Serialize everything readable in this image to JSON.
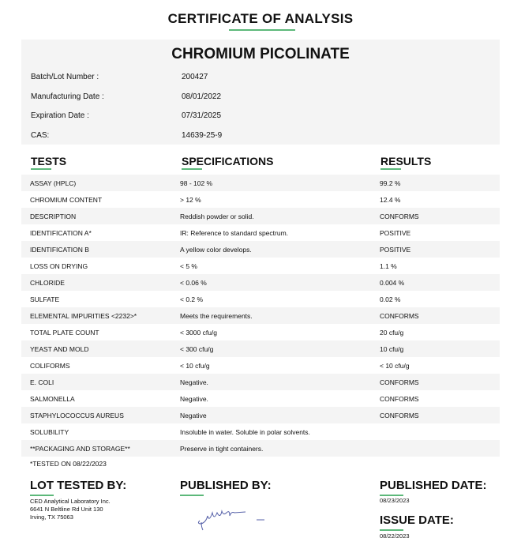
{
  "title": "CERTIFICATE OF ANALYSIS",
  "product": "CHROMIUM PICOLINATE",
  "info": [
    {
      "label": "Batch/Lot Number :",
      "value": "200427"
    },
    {
      "label": "Manufacturing Date :",
      "value": "08/01/2022"
    },
    {
      "label": "Expiration Date :",
      "value": "07/31/2025"
    },
    {
      "label": "CAS:",
      "value": "14639-25-9"
    }
  ],
  "headers": {
    "tests": "TESTS",
    "specifications": "SPECIFICATIONS",
    "results": "RESULTS"
  },
  "rows": [
    {
      "test": "ASSAY (HPLC)",
      "spec": "98 - 102 %",
      "result": "99.2 %"
    },
    {
      "test": "CHROMIUM CONTENT",
      "spec": "> 12 %",
      "result": "12.4 %"
    },
    {
      "test": "DESCRIPTION",
      "spec": "Reddish powder or solid.",
      "result": "CONFORMS"
    },
    {
      "test": "IDENTIFICATION A*",
      "spec": "IR: Reference to standard spectrum.",
      "result": "POSITIVE"
    },
    {
      "test": "IDENTIFICATION B",
      "spec": "A yellow color develops.",
      "result": "POSITIVE"
    },
    {
      "test": "LOSS ON DRYING",
      "spec": "< 5 %",
      "result": "1.1 %"
    },
    {
      "test": "CHLORIDE",
      "spec": "< 0.06 %",
      "result": "0.004 %"
    },
    {
      "test": "SULFATE",
      "spec": "< 0.2 %",
      "result": "0.02 %"
    },
    {
      "test": "ELEMENTAL IMPURITIES <2232>*",
      "spec": "Meets the requirements.",
      "result": "CONFORMS"
    },
    {
      "test": "TOTAL PLATE COUNT",
      "spec": "< 3000 cfu/g",
      "result": "20 cfu/g"
    },
    {
      "test": "YEAST AND MOLD",
      "spec": "< 300 cfu/g",
      "result": "10 cfu/g"
    },
    {
      "test": "COLIFORMS",
      "spec": "< 10 cfu/g",
      "result": "< 10 cfu/g"
    },
    {
      "test": "E. COLI",
      "spec": "Negative.",
      "result": "CONFORMS"
    },
    {
      "test": "SALMONELLA",
      "spec": "Negative.",
      "result": "CONFORMS"
    },
    {
      "test": "STAPHYLOCOCCUS AUREUS",
      "spec": "Negative",
      "result": "CONFORMS"
    },
    {
      "test": "SOLUBILITY",
      "spec": "Insoluble in water. Soluble in polar solvents.",
      "result": ""
    },
    {
      "test": "**PACKAGING AND STORAGE**",
      "spec": "Preserve in tight containers.",
      "result": ""
    }
  ],
  "note": "*TESTED ON 08/22/2023",
  "footer": {
    "lot_tested_by": "LOT TESTED BY:",
    "lab_lines": [
      "CED Analytical Laboratory Inc.",
      "6641 N Beltline Rd Unit 130",
      "Irving, TX 75063"
    ],
    "published_by": "PUBLISHED BY:",
    "published_date_label": "PUBLISHED DATE:",
    "published_date": "08/23/2023",
    "issue_date_label": "ISSUE DATE:",
    "issue_date": "08/22/2023"
  },
  "colors": {
    "accent": "#5cb87a",
    "panel": "#f4f4f4"
  }
}
